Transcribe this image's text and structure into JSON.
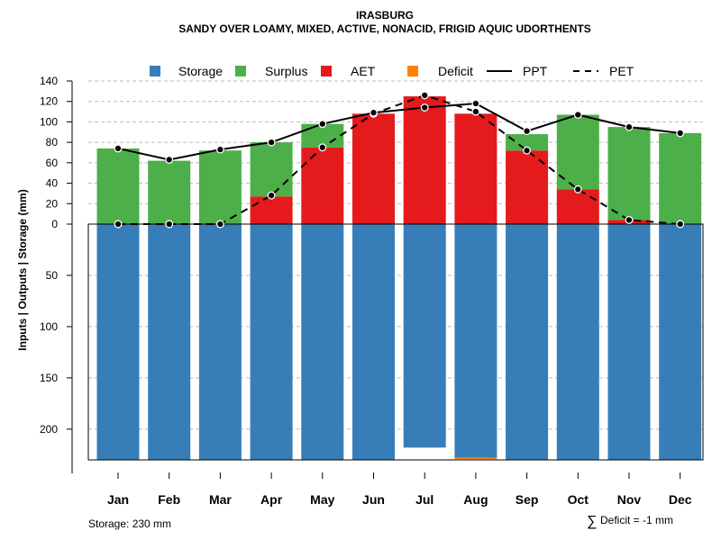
{
  "chart_data": {
    "type": "bar",
    "title": "IRASBURG",
    "subtitle": "SANDY OVER LOAMY, MIXED, ACTIVE, NONACID, FRIGID AQUIC UDORTHENTS",
    "ylabel": "Inputs | Outputs | Storage    (mm)",
    "categories": [
      "Jan",
      "Feb",
      "Mar",
      "Apr",
      "May",
      "Jun",
      "Jul",
      "Aug",
      "Sep",
      "Oct",
      "Nov",
      "Dec"
    ],
    "upper_ylim": [
      0,
      140
    ],
    "upper_ticks": [
      "0",
      "20",
      "40",
      "60",
      "80",
      "100",
      "120",
      "140"
    ],
    "lower_ylim": [
      0,
      230
    ],
    "lower_ticks": [
      "50",
      "100",
      "150",
      "200"
    ],
    "legend": [
      "Storage",
      "Surplus",
      "AET",
      "Deficit",
      "PPT",
      "PET"
    ],
    "colors": {
      "storage": "#377eb8",
      "surplus": "#4daf4a",
      "aet": "#e41a1c",
      "deficit": "#ff7f00"
    },
    "series": [
      {
        "name": "Storage",
        "values": [
          230,
          230,
          230,
          230,
          230,
          230,
          218,
          228,
          230,
          230,
          230,
          230
        ]
      },
      {
        "name": "Deficit",
        "values": [
          0,
          0,
          0,
          0,
          0,
          0,
          0,
          1,
          0,
          0,
          0,
          0
        ]
      },
      {
        "name": "AET",
        "values": [
          0,
          0,
          0,
          27,
          75,
          108,
          125,
          108,
          72,
          34,
          4,
          0
        ]
      },
      {
        "name": "Surplus",
        "values": [
          74,
          62,
          72,
          53,
          23,
          0,
          0,
          0,
          16,
          73,
          91,
          89
        ]
      },
      {
        "name": "PPT",
        "values": [
          74,
          63,
          73,
          80,
          98,
          109,
          114,
          118,
          91,
          107,
          95,
          89
        ]
      },
      {
        "name": "PET",
        "values": [
          0,
          0,
          0,
          28,
          75,
          108,
          126,
          110,
          72,
          34,
          4,
          0
        ]
      }
    ],
    "footer_left": "Storage: 230 mm",
    "footer_right_symbol": "∑",
    "footer_right": "Deficit = -1 mm"
  }
}
